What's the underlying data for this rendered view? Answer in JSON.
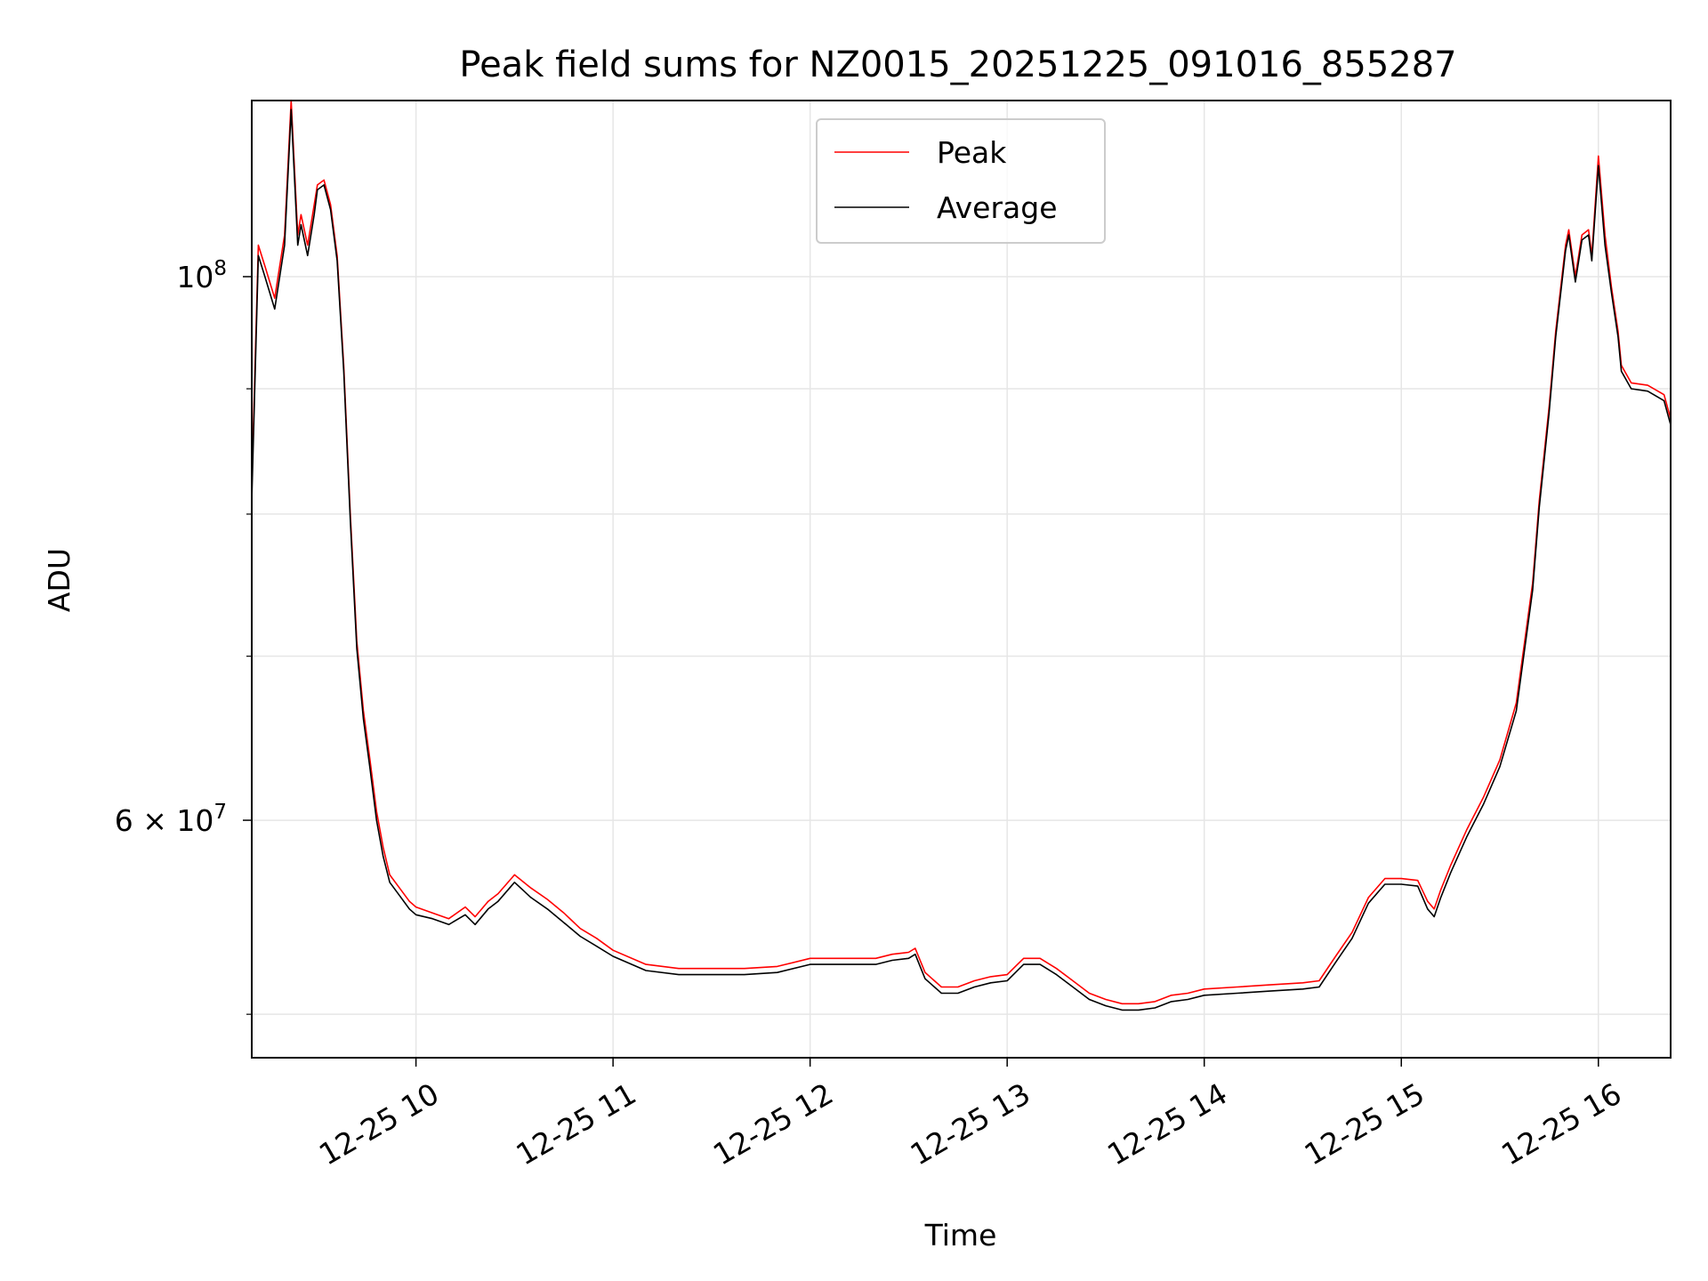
{
  "chart_data": {
    "type": "line",
    "title": "Peak field sums for NZ0015_20251225_091016_855287",
    "xlabel": "Time",
    "ylabel": "ADU",
    "x_scale": "time",
    "y_scale": "log",
    "xlim": [
      "2025-12-25 09:10",
      "2025-12-25 16:22"
    ],
    "ylim": [
      48000000,
      118000000
    ],
    "x_ticks": [
      {
        "value": "2025-12-25 10:00",
        "label": "12-25 10"
      },
      {
        "value": "2025-12-25 11:00",
        "label": "12-25 11"
      },
      {
        "value": "2025-12-25 12:00",
        "label": "12-25 12"
      },
      {
        "value": "2025-12-25 13:00",
        "label": "12-25 13"
      },
      {
        "value": "2025-12-25 14:00",
        "label": "12-25 14"
      },
      {
        "value": "2025-12-25 15:00",
        "label": "12-25 15"
      },
      {
        "value": "2025-12-25 16:00",
        "label": "12-25 16"
      }
    ],
    "y_major_ticks": [
      {
        "value": 60000000,
        "label": "6 × 10",
        "exp": "7"
      },
      {
        "value": 100000000,
        "label": "10",
        "exp": "8"
      }
    ],
    "y_minor_ticks": [
      50000000,
      70000000,
      80000000,
      90000000
    ],
    "grid": true,
    "legend_position": "top-center",
    "colors": {
      "peak": "#ff0000",
      "average": "#000000"
    },
    "x": [
      "2025-12-25 09:10",
      "2025-12-25 09:12",
      "2025-12-25 09:14",
      "2025-12-25 09:17",
      "2025-12-25 09:20",
      "2025-12-25 09:22",
      "2025-12-25 09:24",
      "2025-12-25 09:25",
      "2025-12-25 09:27",
      "2025-12-25 09:29",
      "2025-12-25 09:30",
      "2025-12-25 09:32",
      "2025-12-25 09:34",
      "2025-12-25 09:36",
      "2025-12-25 09:38",
      "2025-12-25 09:40",
      "2025-12-25 09:42",
      "2025-12-25 09:44",
      "2025-12-25 09:46",
      "2025-12-25 09:48",
      "2025-12-25 09:50",
      "2025-12-25 09:52",
      "2025-12-25 09:55",
      "2025-12-25 09:58",
      "2025-12-25 10:00",
      "2025-12-25 10:05",
      "2025-12-25 10:10",
      "2025-12-25 10:15",
      "2025-12-25 10:18",
      "2025-12-25 10:22",
      "2025-12-25 10:25",
      "2025-12-25 10:30",
      "2025-12-25 10:35",
      "2025-12-25 10:40",
      "2025-12-25 10:45",
      "2025-12-25 10:50",
      "2025-12-25 10:55",
      "2025-12-25 11:00",
      "2025-12-25 11:10",
      "2025-12-25 11:20",
      "2025-12-25 11:30",
      "2025-12-25 11:40",
      "2025-12-25 11:50",
      "2025-12-25 12:00",
      "2025-12-25 12:10",
      "2025-12-25 12:20",
      "2025-12-25 12:25",
      "2025-12-25 12:30",
      "2025-12-25 12:32",
      "2025-12-25 12:35",
      "2025-12-25 12:40",
      "2025-12-25 12:45",
      "2025-12-25 12:50",
      "2025-12-25 12:55",
      "2025-12-25 13:00",
      "2025-12-25 13:05",
      "2025-12-25 13:10",
      "2025-12-25 13:15",
      "2025-12-25 13:20",
      "2025-12-25 13:25",
      "2025-12-25 13:30",
      "2025-12-25 13:35",
      "2025-12-25 13:40",
      "2025-12-25 13:45",
      "2025-12-25 13:50",
      "2025-12-25 13:55",
      "2025-12-25 14:00",
      "2025-12-25 14:10",
      "2025-12-25 14:20",
      "2025-12-25 14:30",
      "2025-12-25 14:35",
      "2025-12-25 14:40",
      "2025-12-25 14:45",
      "2025-12-25 14:50",
      "2025-12-25 14:55",
      "2025-12-25 15:00",
      "2025-12-25 15:05",
      "2025-12-25 15:08",
      "2025-12-25 15:10",
      "2025-12-25 15:12",
      "2025-12-25 15:15",
      "2025-12-25 15:20",
      "2025-12-25 15:25",
      "2025-12-25 15:30",
      "2025-12-25 15:35",
      "2025-12-25 15:40",
      "2025-12-25 15:42",
      "2025-12-25 15:45",
      "2025-12-25 15:47",
      "2025-12-25 15:50",
      "2025-12-25 15:51",
      "2025-12-25 15:53",
      "2025-12-25 15:55",
      "2025-12-25 15:57",
      "2025-12-25 15:58",
      "2025-12-25 16:00",
      "2025-12-25 16:02",
      "2025-12-25 16:04",
      "2025-12-25 16:06",
      "2025-12-25 16:07",
      "2025-12-25 16:10",
      "2025-12-25 16:15",
      "2025-12-25 16:20",
      "2025-12-25 16:22"
    ],
    "series": [
      {
        "name": "Peak",
        "values": [
          82000000,
          103000000,
          101000000,
          98000000,
          104000000,
          118000000,
          104000000,
          106000000,
          103000000,
          107000000,
          109000000,
          109500000,
          107000000,
          102000000,
          92000000,
          80000000,
          71000000,
          66500000,
          63500000,
          60500000,
          58500000,
          57000000,
          56300000,
          55600000,
          55300000,
          55000000,
          54700000,
          55300000,
          54800000,
          55600000,
          56000000,
          57000000,
          56300000,
          55700000,
          55000000,
          54200000,
          53700000,
          53100000,
          52400000,
          52200000,
          52200000,
          52200000,
          52300000,
          52700000,
          52700000,
          52700000,
          52900000,
          53000000,
          53200000,
          52000000,
          51300000,
          51300000,
          51600000,
          51800000,
          51900000,
          52700000,
          52700000,
          52200000,
          51600000,
          51000000,
          50700000,
          50500000,
          50500000,
          50600000,
          50900000,
          51000000,
          51200000,
          51300000,
          51400000,
          51500000,
          51600000,
          52800000,
          54000000,
          55800000,
          56800000,
          56800000,
          56700000,
          55600000,
          55200000,
          56200000,
          57500000,
          59500000,
          61300000,
          63500000,
          67000000,
          75000000,
          81000000,
          88500000,
          95000000,
          103000000,
          104500000,
          100000000,
          104000000,
          104500000,
          102000000,
          112000000,
          104000000,
          99000000,
          95000000,
          92000000,
          90500000,
          90300000,
          89500000,
          87500000
        ]
      },
      {
        "name": "Average",
        "values": [
          81000000,
          102000000,
          100000000,
          97000000,
          103000000,
          117000000,
          103000000,
          105000000,
          102000000,
          106000000,
          108500000,
          109000000,
          106500000,
          101500000,
          91500000,
          79500000,
          70500000,
          66000000,
          63000000,
          60000000,
          58000000,
          56600000,
          55900000,
          55200000,
          54900000,
          54700000,
          54400000,
          54900000,
          54400000,
          55200000,
          55600000,
          56600000,
          55800000,
          55200000,
          54500000,
          53800000,
          53300000,
          52800000,
          52100000,
          51900000,
          51900000,
          51900000,
          52000000,
          52400000,
          52400000,
          52400000,
          52600000,
          52700000,
          52900000,
          51700000,
          51000000,
          51000000,
          51300000,
          51500000,
          51600000,
          52400000,
          52400000,
          51900000,
          51300000,
          50700000,
          50400000,
          50200000,
          50200000,
          50300000,
          50600000,
          50700000,
          50900000,
          51000000,
          51100000,
          51200000,
          51300000,
          52500000,
          53700000,
          55500000,
          56500000,
          56500000,
          56400000,
          55200000,
          54800000,
          55800000,
          57100000,
          59100000,
          60900000,
          63100000,
          66500000,
          74500000,
          80500000,
          88000000,
          94500000,
          102500000,
          104000000,
          99500000,
          103500000,
          104000000,
          101500000,
          111000000,
          103000000,
          98500000,
          94500000,
          91500000,
          90000000,
          89800000,
          89000000,
          87000000
        ]
      }
    ]
  }
}
